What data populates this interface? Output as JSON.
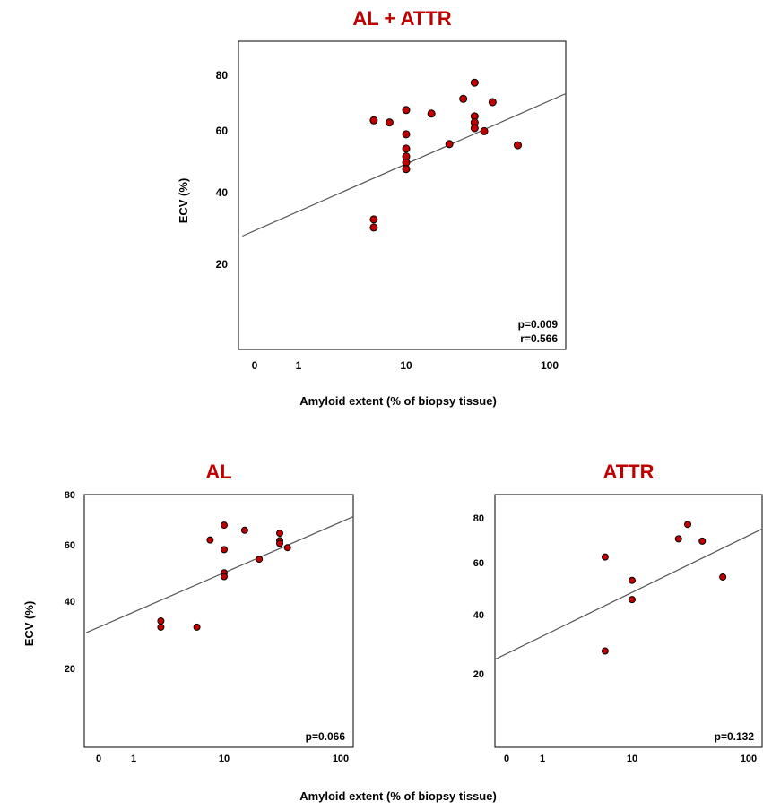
{
  "shared": {
    "xlabel": "Amyloid extent (% of biopsy tissue)",
    "ylabel": "ECV (%)",
    "point_color": "#c00000",
    "point_stroke": "#000000",
    "title_color": "#c00000",
    "line_color": "#555555"
  },
  "chart_data": [
    {
      "type": "scatter",
      "title": "AL + ATTR",
      "xlabel": "Amyloid extent (% of biopsy tissue)",
      "ylabel": "ECV (%)",
      "x_scale": "log",
      "y_scale": "log",
      "x_ticks": [
        "0",
        "1",
        "10",
        "100"
      ],
      "y_ticks": [
        "20",
        "40",
        "60",
        "80"
      ],
      "grid": false,
      "stats": [
        "p=0.009",
        "r=0.566"
      ],
      "trendline": {
        "x": [
          0.3,
          150
        ],
        "y": [
          24.6,
          72
        ]
      },
      "points": [
        {
          "x": 5,
          "y": 57.5
        },
        {
          "x": 5,
          "y": 27.8
        },
        {
          "x": 5,
          "y": 26.2
        },
        {
          "x": 7,
          "y": 56.6
        },
        {
          "x": 10,
          "y": 62
        },
        {
          "x": 10,
          "y": 51.9
        },
        {
          "x": 10,
          "y": 46.7
        },
        {
          "x": 10,
          "y": 44.1
        },
        {
          "x": 10,
          "y": 42.2
        },
        {
          "x": 10,
          "y": 40.2
        },
        {
          "x": 15,
          "y": 60.4
        },
        {
          "x": 20,
          "y": 48.3
        },
        {
          "x": 25,
          "y": 67.3
        },
        {
          "x": 30,
          "y": 75.8
        },
        {
          "x": 30,
          "y": 59.2
        },
        {
          "x": 30,
          "y": 56.6
        },
        {
          "x": 30,
          "y": 54.3
        },
        {
          "x": 35,
          "y": 53.1
        },
        {
          "x": 40,
          "y": 65.7
        },
        {
          "x": 60,
          "y": 47.9
        }
      ]
    },
    {
      "type": "scatter",
      "title": "AL",
      "xlabel": "Amyloid extent (% of biopsy tissue)",
      "ylabel": "ECV (%)",
      "x_scale": "log",
      "y_scale": "log",
      "x_ticks": [
        "0",
        "1",
        "10",
        "100"
      ],
      "y_ticks": [
        "20",
        "40",
        "60",
        "80"
      ],
      "grid": false,
      "stats": [
        "p=0.066"
      ],
      "trendline": {
        "x": [
          0.3,
          150
        ],
        "y": [
          26.6,
          69
        ]
      },
      "points": [
        {
          "x": 2,
          "y": 29.2
        },
        {
          "x": 2,
          "y": 27.8
        },
        {
          "x": 5,
          "y": 27.8
        },
        {
          "x": 7,
          "y": 55.7
        },
        {
          "x": 10,
          "y": 62.7
        },
        {
          "x": 10,
          "y": 51.6
        },
        {
          "x": 10,
          "y": 42.9
        },
        {
          "x": 10,
          "y": 41.6
        },
        {
          "x": 15,
          "y": 60.2
        },
        {
          "x": 20,
          "y": 47.8
        },
        {
          "x": 30,
          "y": 58.8
        },
        {
          "x": 30,
          "y": 55.4
        },
        {
          "x": 30,
          "y": 54.2
        },
        {
          "x": 35,
          "y": 52.4
        }
      ]
    },
    {
      "type": "scatter",
      "title": "ATTR",
      "xlabel": "Amyloid extent (% of biopsy tissue)",
      "ylabel": "ECV (%)",
      "x_scale": "log",
      "y_scale": "log",
      "x_ticks": [
        "0",
        "1",
        "10",
        "100"
      ],
      "y_ticks": [
        "20",
        "40",
        "60",
        "80"
      ],
      "grid": false,
      "stats": [
        "p=0.132"
      ],
      "trendline": {
        "x": [
          0.3,
          150
        ],
        "y": [
          22.8,
          74.8
        ]
      },
      "points": [
        {
          "x": 5,
          "y": 56.5
        },
        {
          "x": 5,
          "y": 24.5
        },
        {
          "x": 10,
          "y": 45.9
        },
        {
          "x": 10,
          "y": 38.7
        },
        {
          "x": 25,
          "y": 66.4
        },
        {
          "x": 30,
          "y": 75.5
        },
        {
          "x": 40,
          "y": 65.1
        },
        {
          "x": 60,
          "y": 47.3
        }
      ]
    }
  ],
  "bottom_xlabel": "Amyloid extent (% of biopsy tissue)",
  "bottom_ylabel": "ECV (%)"
}
